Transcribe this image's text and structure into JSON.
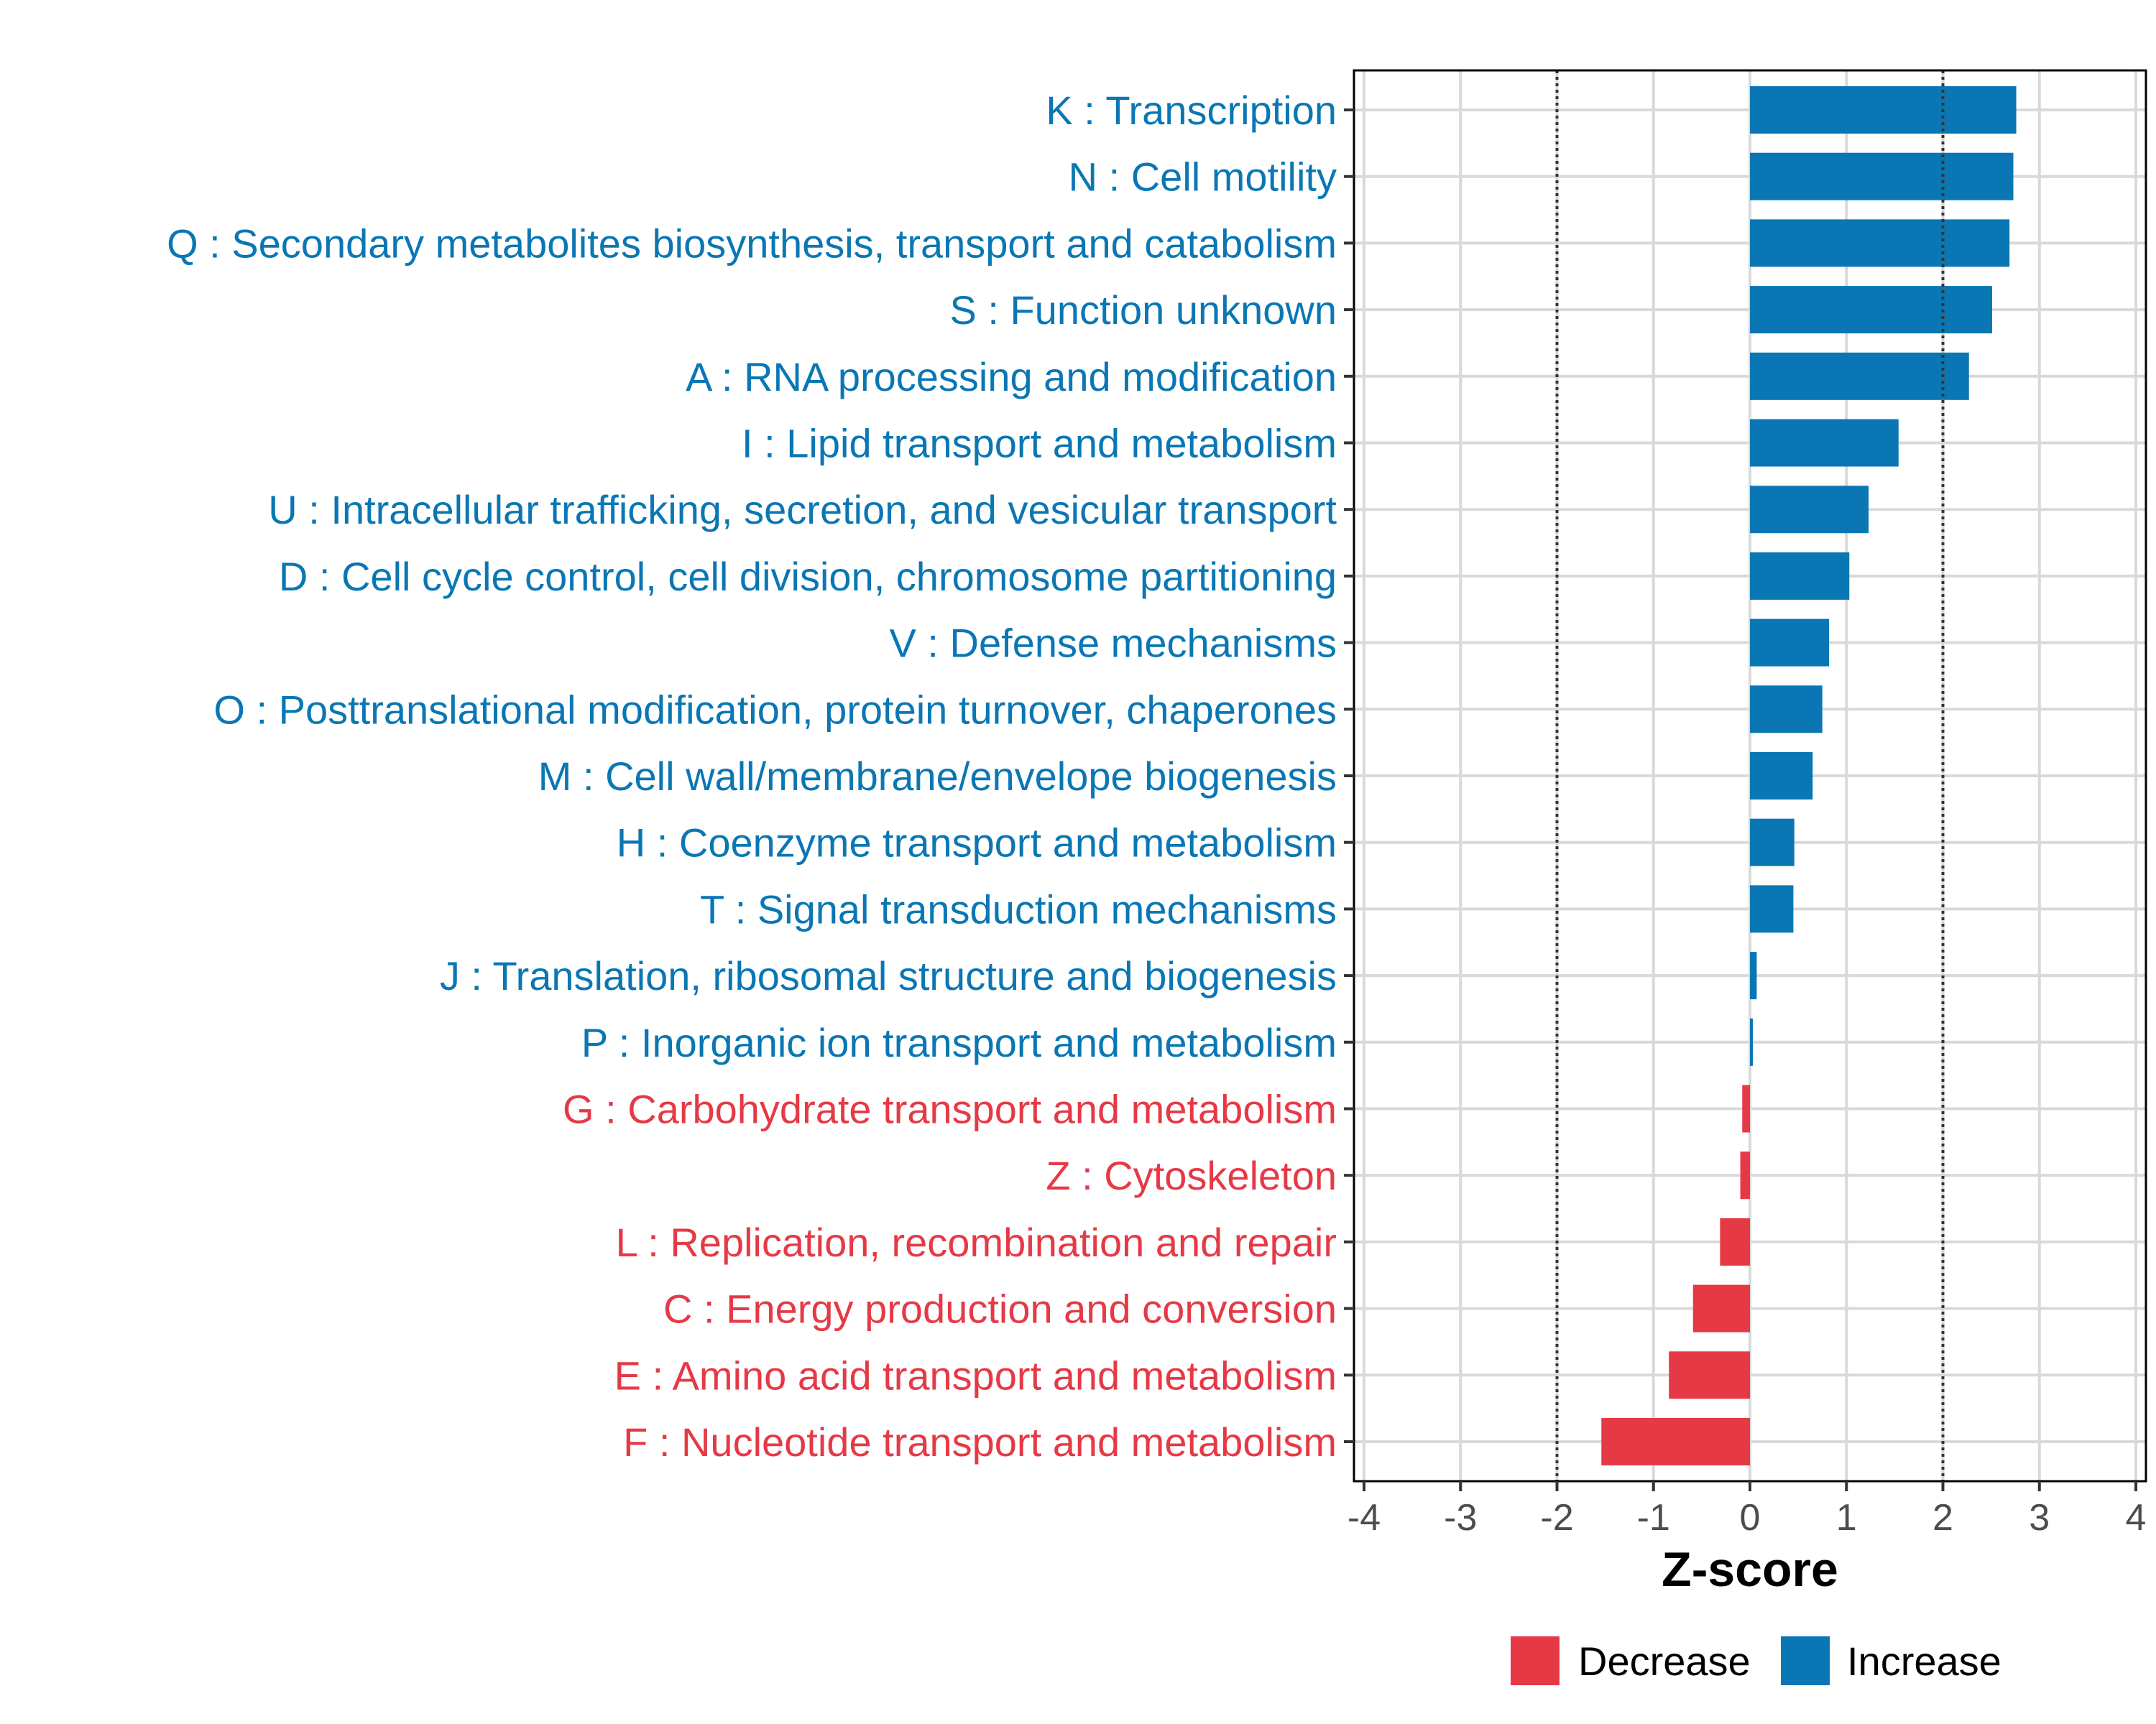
{
  "colors": {
    "increase": "#0a77b4",
    "decrease": "#e63946",
    "grid": "#d9d9d9",
    "ref_line": "#333333"
  },
  "chart_data": {
    "type": "bar",
    "orientation": "horizontal",
    "title": "",
    "xlabel": "Z-score",
    "ylabel": "",
    "xlim": [
      -4,
      4
    ],
    "xticks": [
      -4,
      -3,
      -2,
      -1,
      0,
      1,
      2,
      3,
      4
    ],
    "tick_labels": [
      "-4",
      "-3",
      "-2",
      "-1",
      "0",
      "1",
      "2",
      "3",
      "4"
    ],
    "reference_lines": [
      -2,
      2
    ],
    "grid": true,
    "legend": {
      "position": "bottom",
      "items": [
        {
          "label": "Decrease",
          "group": "decrease"
        },
        {
          "label": "Increase",
          "group": "increase"
        }
      ]
    },
    "categories": [
      "K : Transcription",
      "N : Cell motility",
      "Q : Secondary metabolites biosynthesis, transport and catabolism",
      "S : Function unknown",
      "A : RNA processing and modification",
      "I : Lipid transport and metabolism",
      "U : Intracellular trafficking, secretion, and vesicular transport",
      "D : Cell cycle control, cell division, chromosome partitioning",
      "V : Defense mechanisms",
      "O : Posttranslational modification, protein turnover, chaperones",
      "M : Cell wall/membrane/envelope biogenesis",
      "H : Coenzyme transport and metabolism",
      "T : Signal transduction mechanisms",
      "J : Translation, ribosomal structure and biogenesis",
      "P : Inorganic ion transport and metabolism",
      "G : Carbohydrate transport and metabolism",
      "Z : Cytoskeleton",
      "L : Replication, recombination and repair",
      "C : Energy production and conversion",
      "E : Amino acid transport and metabolism",
      "F : Nucleotide transport and metabolism"
    ],
    "values": [
      2.76,
      2.73,
      2.69,
      2.51,
      2.27,
      1.54,
      1.23,
      1.03,
      0.82,
      0.75,
      0.65,
      0.46,
      0.45,
      0.07,
      0.03,
      -0.08,
      -0.1,
      -0.31,
      -0.59,
      -0.84,
      -1.54
    ],
    "groups": [
      "increase",
      "increase",
      "increase",
      "increase",
      "increase",
      "increase",
      "increase",
      "increase",
      "increase",
      "increase",
      "increase",
      "increase",
      "increase",
      "increase",
      "increase",
      "decrease",
      "decrease",
      "decrease",
      "decrease",
      "decrease",
      "decrease"
    ]
  }
}
